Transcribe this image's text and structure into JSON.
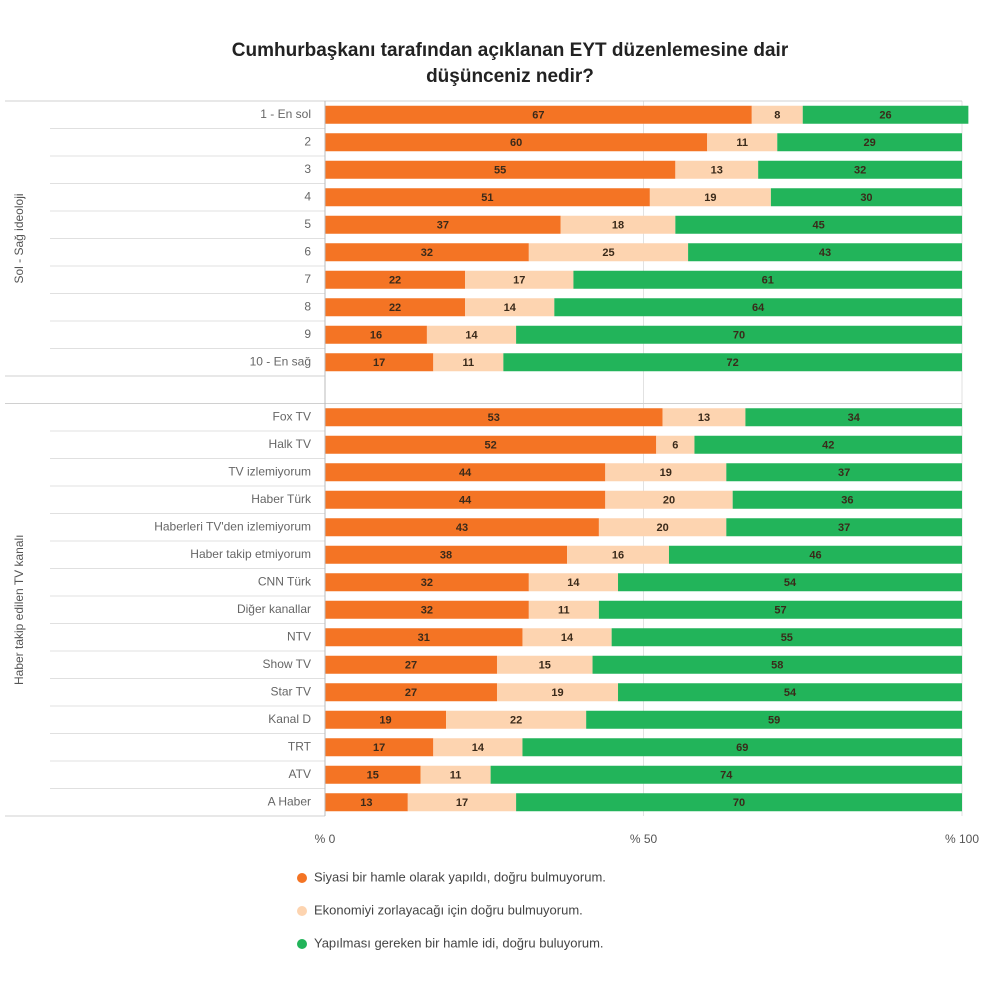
{
  "chart_data": {
    "type": "stacked-bar-horizontal",
    "title": "Cumhurbaşkanı tarafından açıklanan EYT düzenlemesine dair düşünceniz nedir?",
    "group_labels": [
      "Sol - Sağ ideoloji",
      "Haber takip edilen TV kanalı"
    ],
    "categories": [
      [
        "1 - En sol",
        "2",
        "3",
        "4",
        "5",
        "6",
        "7",
        "8",
        "9",
        "10 - En sağ"
      ],
      [
        "Fox TV",
        "Halk TV",
        "TV izlemiyorum",
        "Haber Türk",
        "Haberleri TV'den izlemiyorum",
        "Haber takip etmiyorum",
        "CNN Türk",
        "Diğer kanallar",
        "NTV",
        "Show TV",
        "Star TV",
        "Kanal D",
        "TRT",
        "ATV",
        "A Haber"
      ]
    ],
    "series": [
      {
        "name": "Siyasi bir hamle olarak yapıldı, doğru bulmuyorum.",
        "color": "#f47424",
        "values": [
          [
            67,
            60,
            55,
            51,
            37,
            32,
            22,
            22,
            16,
            17
          ],
          [
            53,
            52,
            44,
            44,
            43,
            38,
            32,
            32,
            31,
            27,
            27,
            19,
            17,
            15,
            13
          ]
        ]
      },
      {
        "name": "Ekonomiyi zorlayacağı için doğru bulmuyorum.",
        "color": "#fdd4b0",
        "values": [
          [
            8,
            11,
            13,
            19,
            18,
            25,
            17,
            14,
            14,
            11
          ],
          [
            13,
            6,
            19,
            20,
            20,
            16,
            14,
            11,
            14,
            15,
            19,
            22,
            14,
            11,
            17
          ]
        ]
      },
      {
        "name": "Yapılması gereken bir hamle idi, doğru buluyorum.",
        "color": "#22b45a",
        "values": [
          [
            26,
            29,
            32,
            30,
            45,
            43,
            61,
            64,
            70,
            72
          ],
          [
            34,
            42,
            37,
            36,
            37,
            46,
            54,
            57,
            55,
            58,
            54,
            59,
            69,
            74,
            70
          ]
        ]
      }
    ],
    "xlim": [
      0,
      100
    ],
    "xticks": [
      {
        "value": 0,
        "label": "% 0"
      },
      {
        "value": 50,
        "label": "% 50"
      },
      {
        "value": 100,
        "label": "% 100"
      }
    ],
    "grid": true
  }
}
